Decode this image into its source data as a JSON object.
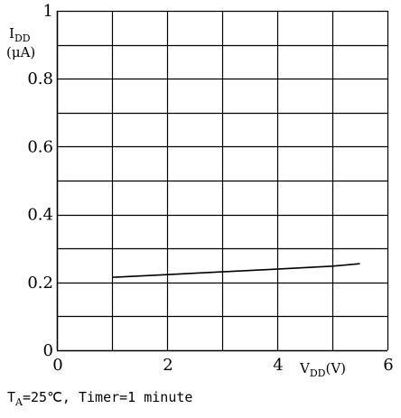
{
  "chart_data": {
    "type": "line",
    "ylabel_main": "I",
    "ylabel_sub": "DD",
    "ylabel_unit": "(μA)",
    "xlabel_main": "V",
    "xlabel_sub": "DD",
    "xlabel_unit": "(V)",
    "xlim": [
      0,
      6
    ],
    "ylim": [
      0,
      1
    ],
    "x_ticks": [
      {
        "value": 0,
        "label": "0"
      },
      {
        "value": 2,
        "label": "2"
      },
      {
        "value": 4,
        "label": "4"
      },
      {
        "value": 6,
        "label": "6"
      }
    ],
    "y_ticks": [
      {
        "value": 0,
        "label": "0"
      },
      {
        "value": 0.2,
        "label": "0.2"
      },
      {
        "value": 0.4,
        "label": "0.4"
      },
      {
        "value": 0.6,
        "label": "0.6"
      },
      {
        "value": 0.8,
        "label": "0.8"
      },
      {
        "value": 1,
        "label": "1"
      }
    ],
    "grid": true,
    "x_grid_step": 1,
    "y_grid_step": 0.1,
    "series": [
      {
        "x": [
          1.0,
          2.0,
          3.0,
          4.0,
          5.0,
          5.5
        ],
        "y": [
          0.215,
          0.223,
          0.231,
          0.239,
          0.248,
          0.255
        ]
      }
    ],
    "note": {
      "prefix": "T",
      "prefix_sub": "A",
      "text": "=25℃, Timer=1 minute"
    }
  }
}
